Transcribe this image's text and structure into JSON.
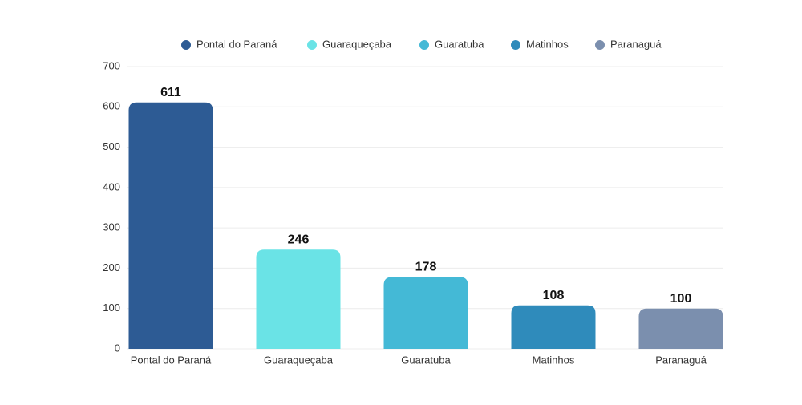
{
  "chart_data": {
    "type": "bar",
    "categories": [
      "Pontal do Paraná",
      "Guaraqueçaba",
      "Guaratuba",
      "Matinhos",
      "Paranaguá"
    ],
    "values": [
      611,
      246,
      178,
      108,
      100
    ],
    "colors": [
      "#2d5b94",
      "#6ae3e6",
      "#44b9d6",
      "#2f8bbb",
      "#7b8fae"
    ],
    "ylim": [
      0,
      700
    ],
    "yticks": [
      0,
      100,
      200,
      300,
      400,
      500,
      600,
      700
    ],
    "grid": true
  }
}
